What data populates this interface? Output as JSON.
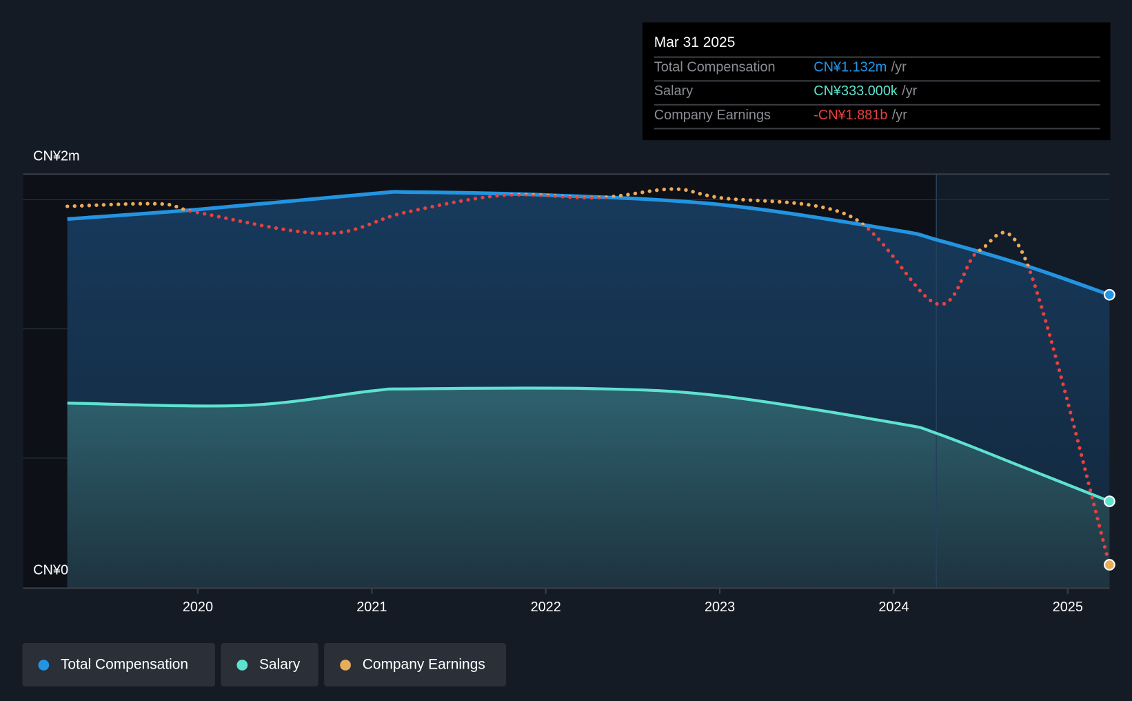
{
  "tooltip": {
    "date": "Mar 31 2025",
    "rows": [
      {
        "label": "Total Compensation",
        "value": "CN¥1.132m",
        "unit": "/yr",
        "color": "#2394e2"
      },
      {
        "label": "Salary",
        "value": "CN¥333.000k",
        "unit": "/yr",
        "color": "#5ee2cf"
      },
      {
        "label": "Company Earnings",
        "value": "-CN¥1.881b",
        "unit": "/yr",
        "color": "#e8413f"
      }
    ]
  },
  "legend": [
    {
      "label": "Total Compensation",
      "color": "#2394e2"
    },
    {
      "label": "Salary",
      "color": "#5ee2cf"
    },
    {
      "label": "Company Earnings",
      "color": "#e8ad5a"
    }
  ],
  "chart_data": {
    "type": "line",
    "y_axis_labels": [
      "CN¥2m",
      "CN¥0"
    ],
    "x_tick_labels": [
      "2020",
      "2021",
      "2022",
      "2023",
      "2024",
      "2025"
    ],
    "x_ticks": [
      2020,
      2021,
      2022,
      2023,
      2024,
      2025
    ],
    "xlim": [
      2019.0,
      2025.24
    ],
    "ylim_m": [
      0,
      1.6
    ],
    "forecast_divider_x": 2024.25,
    "series": [
      {
        "name": "Total Compensation",
        "unit": "CN¥m",
        "color": "#2394e2",
        "x": [
          2019.25,
          2020.0,
          2021.0,
          2021.23,
          2022.0,
          2023.0,
          2024.0,
          2024.25,
          2024.76,
          2025.24
        ],
        "y": [
          1.425,
          1.462,
          1.523,
          1.529,
          1.518,
          1.481,
          1.383,
          1.344,
          1.244,
          1.132
        ]
      },
      {
        "name": "Salary",
        "unit": "CN¥m",
        "color": "#5ee2cf",
        "x": [
          2019.25,
          2020.27,
          2021.0,
          2021.23,
          2022.27,
          2023.0,
          2024.0,
          2024.25,
          2024.76,
          2025.24
        ],
        "y": [
          0.713,
          0.704,
          0.76,
          0.768,
          0.769,
          0.741,
          0.637,
          0.595,
          0.461,
          0.333
        ]
      },
      {
        "name": "Company Earnings",
        "unit": "CN¥b",
        "color_above": "#e8ad5a",
        "color_below": "#e8413f",
        "x": [
          2019.25,
          2019.78,
          2020.0,
          2020.73,
          2021.19,
          2021.76,
          2022.3,
          2022.73,
          2023.0,
          2023.75,
          2024.25,
          2024.49,
          2024.76,
          2025.24
        ],
        "y": [
          1.02,
          1.04,
          0.97,
          0.8,
          0.97,
          1.11,
          1.09,
          1.16,
          1.09,
          0.94,
          0.23,
          0.66,
          0.58,
          -1.881
        ]
      }
    ]
  }
}
